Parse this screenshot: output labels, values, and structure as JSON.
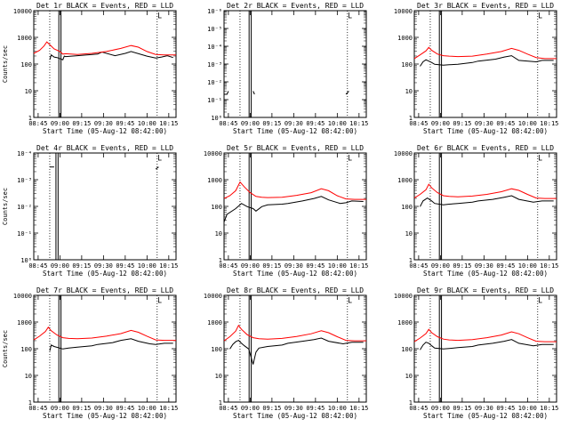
{
  "figure": {
    "xlabel": "Start Time (05-Aug-12 08:42:00)",
    "ylabel": "Counts/sec",
    "legend_note": "BLACK = Events, RED = LLD",
    "colors": {
      "events": "#000000",
      "lld": "#ff0000",
      "axes": "#000000",
      "background": "#ffffff"
    }
  },
  "chart_data": [
    {
      "type": "line",
      "title": "Det 1r BLACK = Events, RED = LLD",
      "xlabel": "Start Time (05-Aug-12 08:42:00)",
      "ylabel": "Counts/sec",
      "x_tick_labels": [
        "08:45",
        "09:00",
        "09:15",
        "09:30",
        "09:45",
        "10:00",
        "10:15"
      ],
      "y_tick_labels": [
        "1",
        "10",
        "100",
        "1000",
        "10000"
      ],
      "y_scale": "log",
      "ylim": [
        1,
        15000
      ],
      "x_minutes": [
        0,
        7,
        11,
        14,
        20,
        30,
        50,
        67,
        72,
        84,
        98
      ],
      "series": [
        {
          "name": "Events",
          "color": "#000000",
          "x": [
            11,
            12,
            14,
            16,
            20,
            21,
            22,
            30,
            44,
            47,
            56,
            63,
            67,
            78,
            84,
            88,
            92,
            96
          ],
          "y": [
            180,
            280,
            230,
            220,
            180,
            250,
            240,
            260,
            300,
            360,
            260,
            320,
            380,
            250,
            210,
            230,
            260,
            220
          ]
        },
        {
          "name": "LLD",
          "color": "#ff0000",
          "x": [
            0,
            4,
            7,
            9,
            11,
            14,
            18,
            20,
            22,
            30,
            40,
            50,
            60,
            67,
            72,
            78,
            84,
            90,
            98
          ],
          "y": [
            320,
            420,
            620,
            900,
            700,
            480,
            380,
            300,
            310,
            290,
            320,
            380,
            500,
            650,
            560,
            380,
            290,
            280,
            280
          ]
        }
      ],
      "vertical_lines": [
        {
          "x": 11,
          "style": "dotted"
        },
        {
          "x": 18,
          "style": "double"
        },
        {
          "x": 85,
          "style": "dotted"
        }
      ]
    },
    {
      "type": "line",
      "title": "Det 2r BLACK = Events, RED = LLD",
      "xlabel": "Start Time (05-Aug-12 08:42:00)",
      "ylabel": "",
      "x_tick_labels": [
        "08:45",
        "09:00",
        "09:15",
        "09:30",
        "09:45",
        "10:00",
        "10:15"
      ],
      "y_tick_labels": [
        "10⁰",
        "10⁻¹",
        "10⁻²",
        "10⁻³",
        "10⁻⁴",
        "10⁻⁵",
        "10⁻⁶"
      ],
      "y_scale": "log",
      "ylim": [
        1e-06,
        1
      ],
      "series": [
        {
          "name": "Events",
          "color": "#000000",
          "x": [
            0,
            2,
            3
          ],
          "y": [
            2e-05,
            2e-05,
            3e-05
          ]
        },
        {
          "name": "Events",
          "color": "#000000",
          "x": [
            20,
            21
          ],
          "y": [
            3e-05,
            2e-05
          ]
        },
        {
          "name": "Events",
          "color": "#000000",
          "x": [
            84,
            86
          ],
          "y": [
            2e-05,
            3e-05
          ]
        }
      ],
      "vertical_lines": [
        {
          "x": 11,
          "style": "dotted"
        },
        {
          "x": 18,
          "style": "double"
        },
        {
          "x": 85,
          "style": "dotted"
        }
      ]
    },
    {
      "type": "line",
      "title": "Det 3r BLACK = Events, RED = LLD",
      "xlabel": "Start Time (05-Aug-12 08:42:00)",
      "ylabel": "",
      "x_tick_labels": [
        "08:45",
        "09:00",
        "09:15",
        "09:30",
        "09:45",
        "10:00",
        "10:15"
      ],
      "y_tick_labels": [
        "1",
        "10",
        "100",
        "1000",
        "10000"
      ],
      "y_scale": "log",
      "ylim": [
        1,
        15000
      ],
      "series": [
        {
          "name": "Events",
          "color": "#000000",
          "x": [
            4,
            6,
            8,
            10,
            12,
            14,
            20,
            24,
            30,
            40,
            44,
            56,
            62,
            67,
            72,
            84,
            88,
            96
          ],
          "y": [
            100,
            150,
            180,
            160,
            140,
            120,
            110,
            115,
            120,
            140,
            160,
            190,
            230,
            260,
            170,
            150,
            170,
            170
          ]
        },
        {
          "name": "LLD",
          "color": "#ff0000",
          "x": [
            0,
            4,
            8,
            10,
            12,
            16,
            20,
            24,
            30,
            40,
            50,
            60,
            67,
            72,
            78,
            84,
            90,
            98
          ],
          "y": [
            200,
            280,
            400,
            550,
            420,
            300,
            260,
            250,
            240,
            250,
            300,
            380,
            500,
            420,
            300,
            220,
            200,
            200
          ]
        }
      ],
      "vertical_lines": [
        {
          "x": 11,
          "style": "dotted"
        },
        {
          "x": 18,
          "style": "double"
        },
        {
          "x": 85,
          "style": "dotted"
        }
      ]
    },
    {
      "type": "line",
      "title": "Det 4r BLACK = Events, RED = LLD",
      "xlabel": "Start Time (05-Aug-12 08:42:00)",
      "ylabel": "Counts/sec",
      "x_tick_labels": [
        "08:45",
        "09:00",
        "09:15",
        "09:30",
        "09:45",
        "10:00",
        "10:15"
      ],
      "y_tick_labels": [
        "10⁰",
        "10⁻¹",
        "10⁻²",
        "10⁻³",
        "10⁻⁴"
      ],
      "y_scale": "log",
      "ylim": [
        0.0001,
        1
      ],
      "series": [
        {
          "name": "Events",
          "color": "#000000",
          "x": [
            11,
            14
          ],
          "y": [
            0.3,
            0.3
          ]
        },
        {
          "name": "Events",
          "color": "#000000",
          "x": [
            84,
            86
          ],
          "y": [
            0.25,
            0.3
          ]
        }
      ],
      "vertical_lines": [
        {
          "x": 11,
          "style": "dotted"
        },
        {
          "x": 16,
          "style": "double"
        },
        {
          "x": 85,
          "style": "dotted"
        }
      ]
    },
    {
      "type": "line",
      "title": "Det 5r BLACK = Events, RED = LLD",
      "xlabel": "Start Time (05-Aug-12 08:42:00)",
      "ylabel": "",
      "x_tick_labels": [
        "08:45",
        "09:00",
        "09:15",
        "09:30",
        "09:45",
        "10:00",
        "10:15"
      ],
      "y_tick_labels": [
        "1",
        "10",
        "100",
        "1000",
        "10000"
      ],
      "y_scale": "log",
      "ylim": [
        1,
        15000
      ],
      "series": [
        {
          "name": "Events",
          "color": "#000000",
          "x": [
            0,
            2,
            8,
            12,
            16,
            20,
            22,
            26,
            30,
            40,
            44,
            54,
            62,
            67,
            72,
            80,
            84,
            88,
            96
          ],
          "y": [
            30,
            60,
            100,
            160,
            120,
            100,
            80,
            120,
            140,
            150,
            160,
            200,
            250,
            300,
            220,
            160,
            170,
            200,
            190
          ]
        },
        {
          "name": "LLD",
          "color": "#ff0000",
          "x": [
            0,
            4,
            8,
            11,
            14,
            18,
            22,
            26,
            30,
            40,
            50,
            60,
            67,
            72,
            78,
            84,
            90,
            98
          ],
          "y": [
            250,
            320,
            500,
            1100,
            700,
            420,
            300,
            280,
            270,
            280,
            330,
            420,
            600,
            500,
            320,
            240,
            230,
            230
          ]
        }
      ],
      "vertical_lines": [
        {
          "x": 11,
          "style": "dotted"
        },
        {
          "x": 18,
          "style": "double"
        },
        {
          "x": 85,
          "style": "dotted"
        }
      ]
    },
    {
      "type": "line",
      "title": "Det 6r BLACK = Events, RED = LLD",
      "xlabel": "Start Time (05-Aug-12 08:42:00)",
      "ylabel": "",
      "x_tick_labels": [
        "08:45",
        "09:00",
        "09:15",
        "09:30",
        "09:45",
        "10:00",
        "10:15"
      ],
      "y_tick_labels": [
        "1",
        "10",
        "100",
        "1000",
        "10000"
      ],
      "y_scale": "log",
      "ylim": [
        1,
        15000
      ],
      "series": [
        {
          "name": "Events",
          "color": "#000000",
          "x": [
            4,
            6,
            9,
            12,
            14,
            20,
            24,
            30,
            40,
            44,
            54,
            62,
            67,
            72,
            82,
            88,
            96
          ],
          "y": [
            120,
            200,
            260,
            200,
            160,
            140,
            150,
            160,
            180,
            200,
            230,
            280,
            320,
            230,
            180,
            200,
            200
          ]
        },
        {
          "name": "LLD",
          "color": "#ff0000",
          "x": [
            0,
            4,
            8,
            10,
            12,
            16,
            20,
            24,
            30,
            40,
            50,
            60,
            67,
            72,
            78,
            84,
            90,
            98
          ],
          "y": [
            260,
            360,
            550,
            900,
            650,
            420,
            320,
            300,
            290,
            310,
            360,
            460,
            600,
            520,
            360,
            260,
            250,
            250
          ]
        }
      ],
      "vertical_lines": [
        {
          "x": 11,
          "style": "dotted"
        },
        {
          "x": 18,
          "style": "double"
        },
        {
          "x": 85,
          "style": "dotted"
        }
      ]
    },
    {
      "type": "line",
      "title": "Det 7r BLACK = Events, RED = LLD",
      "xlabel": "Start Time (05-Aug-12 08:42:00)",
      "ylabel": "Counts/sec",
      "x_tick_labels": [
        "08:45",
        "09:00",
        "09:15",
        "09:30",
        "09:45",
        "10:00",
        "10:15"
      ],
      "y_tick_labels": [
        "1",
        "10",
        "100",
        "1000",
        "10000"
      ],
      "y_scale": "log",
      "ylim": [
        1,
        15000
      ],
      "series": [
        {
          "name": "Events",
          "color": "#000000",
          "x": [
            11,
            12,
            14,
            20,
            24,
            30,
            40,
            44,
            54,
            60,
            67,
            72,
            80,
            84,
            90,
            96
          ],
          "y": [
            100,
            170,
            150,
            120,
            130,
            140,
            160,
            180,
            210,
            260,
            300,
            240,
            190,
            180,
            200,
            200
          ]
        },
        {
          "name": "LLD",
          "color": "#ff0000",
          "x": [
            0,
            4,
            8,
            10,
            12,
            16,
            20,
            24,
            30,
            40,
            50,
            60,
            67,
            72,
            78,
            84,
            90,
            98
          ],
          "y": [
            270,
            380,
            580,
            850,
            620,
            420,
            330,
            310,
            300,
            320,
            380,
            480,
            640,
            540,
            380,
            270,
            260,
            260
          ]
        }
      ],
      "vertical_lines": [
        {
          "x": 11,
          "style": "dotted"
        },
        {
          "x": 18,
          "style": "double"
        },
        {
          "x": 85,
          "style": "dotted"
        }
      ]
    },
    {
      "type": "line",
      "title": "Det 8r BLACK = Events, RED = LLD",
      "xlabel": "Start Time (05-Aug-12 08:42:00)",
      "ylabel": "",
      "x_tick_labels": [
        "08:45",
        "09:00",
        "09:15",
        "09:30",
        "09:45",
        "10:00",
        "10:15"
      ],
      "y_tick_labels": [
        "1",
        "10",
        "100",
        "1000",
        "10000"
      ],
      "y_scale": "log",
      "ylim": [
        1,
        15000
      ],
      "series": [
        {
          "name": "Events",
          "color": "#000000",
          "x": [
            4,
            6,
            8,
            10,
            12,
            14,
            17,
            20,
            22,
            24,
            30,
            40,
            44,
            54,
            62,
            67,
            72,
            82,
            88,
            96
          ],
          "y": [
            120,
            180,
            230,
            260,
            200,
            160,
            120,
            30,
            90,
            130,
            150,
            170,
            200,
            240,
            280,
            320,
            240,
            190,
            220,
            220
          ]
        },
        {
          "name": "LLD",
          "color": "#ff0000",
          "x": [
            0,
            4,
            8,
            10,
            12,
            16,
            20,
            24,
            30,
            40,
            50,
            60,
            67,
            72,
            78,
            84,
            90,
            98
          ],
          "y": [
            250,
            360,
            600,
            1000,
            700,
            430,
            330,
            300,
            290,
            310,
            370,
            470,
            620,
            520,
            360,
            260,
            250,
            250
          ]
        }
      ],
      "vertical_lines": [
        {
          "x": 11,
          "style": "dotted"
        },
        {
          "x": 18,
          "style": "double"
        },
        {
          "x": 85,
          "style": "dotted"
        }
      ]
    },
    {
      "type": "line",
      "title": "Det 9r BLACK = Events, RED = LLD",
      "xlabel": "Start Time (05-Aug-12 08:42:00)",
      "ylabel": "",
      "x_tick_labels": [
        "08:45",
        "09:00",
        "09:15",
        "09:30",
        "09:45",
        "10:00",
        "10:15"
      ],
      "y_tick_labels": [
        "1",
        "10",
        "100",
        "1000",
        "10000"
      ],
      "y_scale": "log",
      "ylim": [
        1,
        15000
      ],
      "series": [
        {
          "name": "Events",
          "color": "#000000",
          "x": [
            4,
            6,
            8,
            10,
            12,
            14,
            20,
            24,
            30,
            40,
            44,
            54,
            62,
            67,
            72,
            82,
            88,
            96
          ],
          "y": [
            110,
            170,
            220,
            200,
            160,
            130,
            120,
            125,
            135,
            150,
            170,
            200,
            240,
            280,
            200,
            160,
            180,
            180
          ]
        },
        {
          "name": "LLD",
          "color": "#ff0000",
          "x": [
            0,
            4,
            8,
            10,
            12,
            16,
            20,
            24,
            30,
            40,
            50,
            60,
            67,
            72,
            78,
            84,
            90,
            98
          ],
          "y": [
            230,
            320,
            480,
            700,
            520,
            360,
            290,
            270,
            260,
            280,
            330,
            420,
            560,
            470,
            330,
            240,
            230,
            230
          ]
        }
      ],
      "vertical_lines": [
        {
          "x": 11,
          "style": "dotted"
        },
        {
          "x": 18,
          "style": "double"
        },
        {
          "x": 85,
          "style": "dotted"
        }
      ]
    }
  ]
}
